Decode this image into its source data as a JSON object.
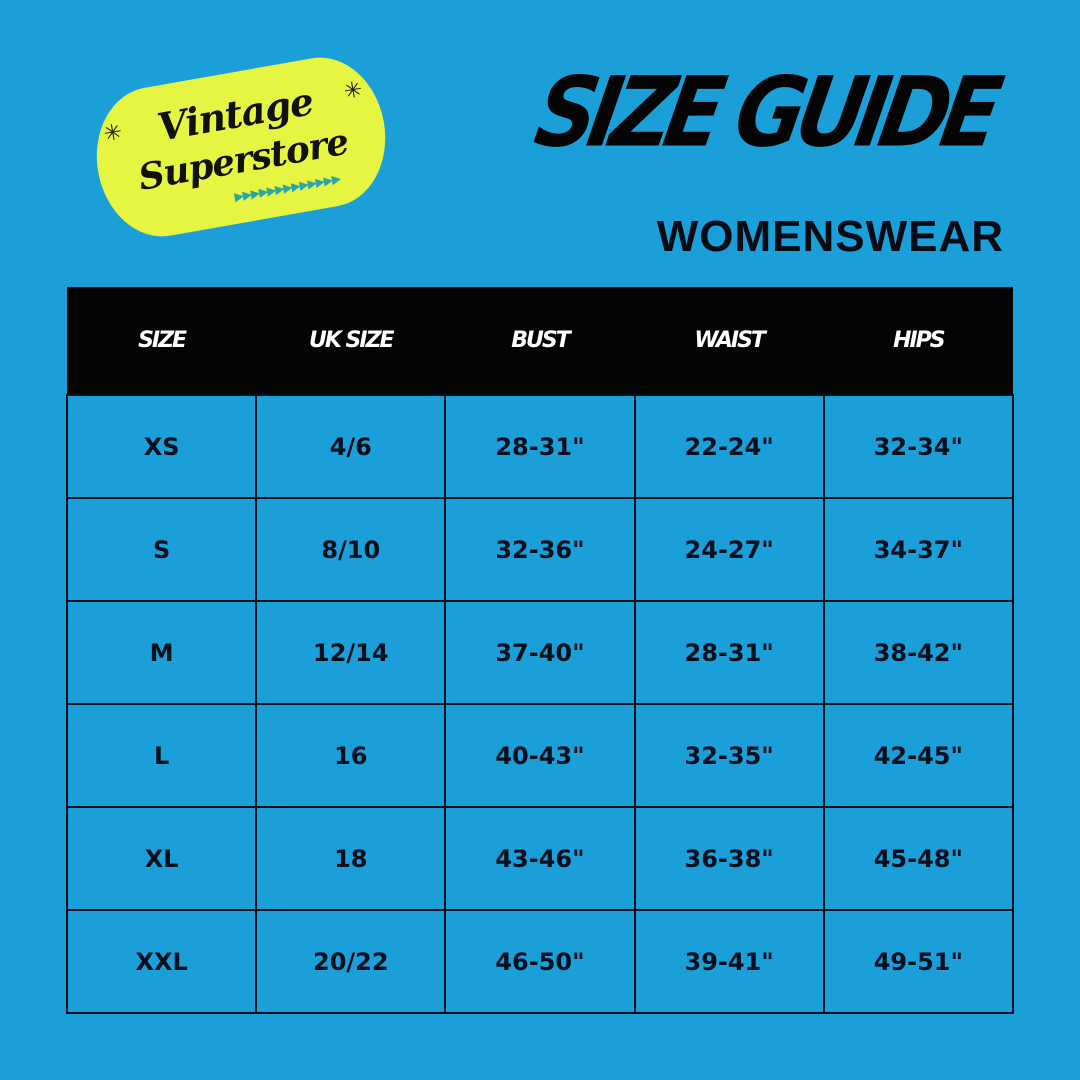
{
  "logo": {
    "line1": "Vintage",
    "line2": "Superstore",
    "brand_color": "#e6f542",
    "accent": "#2aa6a8"
  },
  "title": "SIZE GUIDE",
  "subtitle": "WOMENSWEAR",
  "colors": {
    "background": "#1a9fd9",
    "header": "#050505"
  },
  "table": {
    "headers": [
      "SIZE",
      "UK SIZE",
      "BUST",
      "WAIST",
      "HIPS"
    ],
    "rows": [
      [
        "XS",
        "4/6",
        "28-31\"",
        "22-24\"",
        "32-34\""
      ],
      [
        "S",
        "8/10",
        "32-36\"",
        "24-27\"",
        "34-37\""
      ],
      [
        "M",
        "12/14",
        "37-40\"",
        "28-31\"",
        "38-42\""
      ],
      [
        "L",
        "16",
        "40-43\"",
        "32-35\"",
        "42-45\""
      ],
      [
        "XL",
        "18",
        "43-46\"",
        "36-38\"",
        "45-48\""
      ],
      [
        "XXL",
        "20/22",
        "46-50\"",
        "39-41\"",
        "49-51\""
      ]
    ]
  }
}
